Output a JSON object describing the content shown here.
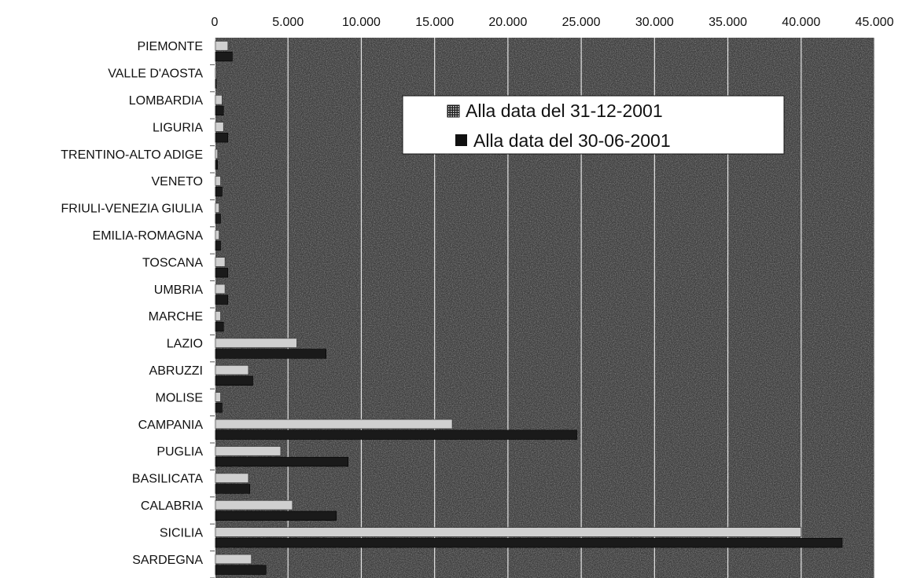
{
  "chart_data": {
    "type": "bar",
    "orientation": "horizontal",
    "categories": [
      "PIEMONTE",
      "VALLE D'AOSTA",
      "LOMBARDIA",
      "LIGURIA",
      "TRENTINO-ALTO ADIGE",
      "VENETO",
      "FRIULI-VENEZIA GIULIA",
      "EMILIA-ROMAGNA",
      "TOSCANA",
      "UMBRIA",
      "MARCHE",
      "LAZIO",
      "ABRUZZI",
      "MOLISE",
      "CAMPANIA",
      "PUGLIA",
      "BASILICATA",
      "CALABRIA",
      "SICILIA",
      "SARDEGNA"
    ],
    "series": [
      {
        "name": "Alla data del 31-12-2001",
        "values": [
          900,
          100,
          500,
          600,
          200,
          400,
          300,
          300,
          700,
          700,
          400,
          5600,
          2300,
          400,
          16200,
          4500,
          2300,
          5300,
          40000,
          2500
        ],
        "color": "#d0d0d0"
      },
      {
        "name": "Alla data del 30-06-2001",
        "values": [
          1200,
          100,
          600,
          900,
          200,
          500,
          400,
          400,
          900,
          900,
          600,
          7600,
          2600,
          500,
          24700,
          9100,
          2400,
          8300,
          42800,
          3500
        ],
        "color": "#1a1a1a"
      }
    ],
    "xticks": [
      "0",
      "5.000",
      "10.000",
      "15.000",
      "20.000",
      "25.000",
      "30.000",
      "35.000",
      "40.000",
      "45.000"
    ],
    "xlim": [
      0,
      45000
    ],
    "grid": true,
    "legend_position": "top-center",
    "title": "",
    "xlabel": "",
    "ylabel": ""
  },
  "colors": {
    "plot_background": "#3d3d3d",
    "gridline": "#e6e6e6",
    "legend_background": "#ffffff"
  }
}
